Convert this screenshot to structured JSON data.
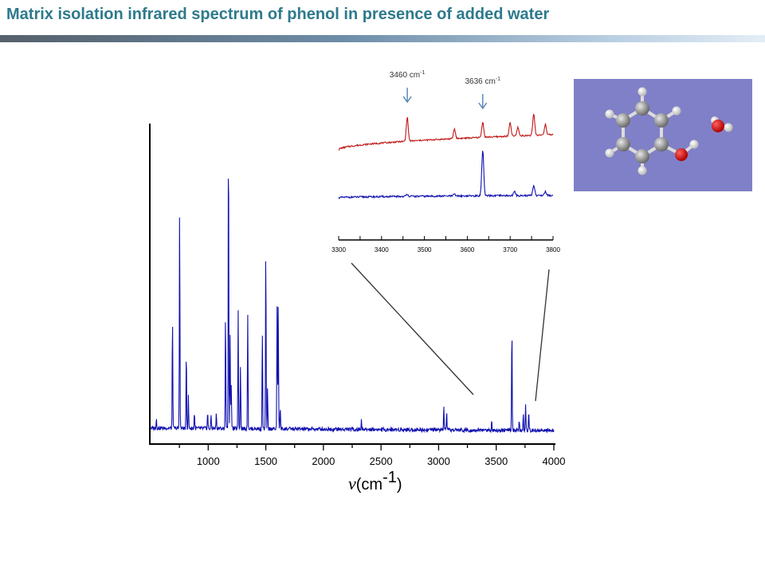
{
  "slide": {
    "title": "Matrix isolation infrared spectrum of phenol in presence of added water"
  },
  "colors": {
    "title": "#2e7a8c",
    "main_spectrum": "#1010b0",
    "inset_top_spectrum": "#c01818",
    "inset_bottom_spectrum": "#1010b0",
    "annotation_arrow": "#5a8ab8",
    "molecule_background": "#8080c8"
  },
  "chart_data": [
    {
      "type": "line",
      "role": "main-spectrum",
      "xlabel_symbol": "ν",
      "xlabel_unit": "(cm",
      "xlabel_exp": "-1",
      "xlabel_close": ")",
      "xlim": [
        500,
        4000
      ],
      "x_ticks": [
        1000,
        1500,
        2000,
        2500,
        3000,
        3500,
        4000
      ],
      "x_tick_labels": [
        "1000",
        "1500",
        "2000",
        "2500",
        "3000",
        "3500",
        "4000"
      ],
      "y_axis_labels": false,
      "baseline": 0.05,
      "peaks": [
        {
          "x": 550,
          "height": 0.03
        },
        {
          "x": 690,
          "height": 0.34
        },
        {
          "x": 752,
          "height": 0.68
        },
        {
          "x": 810,
          "height": 0.24
        },
        {
          "x": 828,
          "height": 0.1
        },
        {
          "x": 880,
          "height": 0.05
        },
        {
          "x": 995,
          "height": 0.05
        },
        {
          "x": 1025,
          "height": 0.04
        },
        {
          "x": 1070,
          "height": 0.05
        },
        {
          "x": 1150,
          "height": 0.35
        },
        {
          "x": 1176,
          "height": 0.93
        },
        {
          "x": 1190,
          "height": 0.3
        },
        {
          "x": 1200,
          "height": 0.14
        },
        {
          "x": 1260,
          "height": 0.37
        },
        {
          "x": 1280,
          "height": 0.2
        },
        {
          "x": 1343,
          "height": 0.35
        },
        {
          "x": 1470,
          "height": 0.3
        },
        {
          "x": 1500,
          "height": 0.56
        },
        {
          "x": 1515,
          "height": 0.12
        },
        {
          "x": 1598,
          "height": 0.38
        },
        {
          "x": 1608,
          "height": 0.4
        },
        {
          "x": 1625,
          "height": 0.07
        },
        {
          "x": 2330,
          "height": 0.03
        },
        {
          "x": 3045,
          "height": 0.07
        },
        {
          "x": 3070,
          "height": 0.05
        },
        {
          "x": 3460,
          "height": 0.03
        },
        {
          "x": 3636,
          "height": 0.32
        },
        {
          "x": 3700,
          "height": 0.03
        },
        {
          "x": 3735,
          "height": 0.05
        },
        {
          "x": 3755,
          "height": 0.08
        },
        {
          "x": 3782,
          "height": 0.06
        }
      ]
    },
    {
      "type": "line",
      "role": "inset-zoom",
      "xlim": [
        3300,
        3800
      ],
      "x_ticks": [
        3300,
        3400,
        3500,
        3600,
        3700,
        3800
      ],
      "x_tick_labels": [
        "3300",
        "3400",
        "3500",
        "3600",
        "3700",
        "3800"
      ],
      "series": [
        {
          "role": "with-added-water",
          "peaks": [
            {
              "x": 3460,
              "height": 0.5
            },
            {
              "x": 3570,
              "height": 0.2
            },
            {
              "x": 3636,
              "height": 0.32
            },
            {
              "x": 3700,
              "height": 0.28
            },
            {
              "x": 3718,
              "height": 0.18
            },
            {
              "x": 3755,
              "height": 0.45
            },
            {
              "x": 3782,
              "height": 0.22
            }
          ]
        },
        {
          "role": "phenol-only",
          "peaks": [
            {
              "x": 3460,
              "height": 0.04
            },
            {
              "x": 3570,
              "height": 0.03
            },
            {
              "x": 3636,
              "height": 0.8
            },
            {
              "x": 3710,
              "height": 0.07
            },
            {
              "x": 3755,
              "height": 0.18
            },
            {
              "x": 3782,
              "height": 0.07
            }
          ]
        }
      ],
      "annotations": [
        {
          "x": 3460,
          "label": "3460 cm",
          "exp": "-1"
        },
        {
          "x": 3636,
          "label": "3636 cm",
          "exp": "-1"
        }
      ]
    }
  ],
  "molecule": {
    "depicts": "phenol-water-complex",
    "atoms_carbon": 6,
    "atoms_oxygen": 2,
    "atoms_hydrogen": 8
  }
}
